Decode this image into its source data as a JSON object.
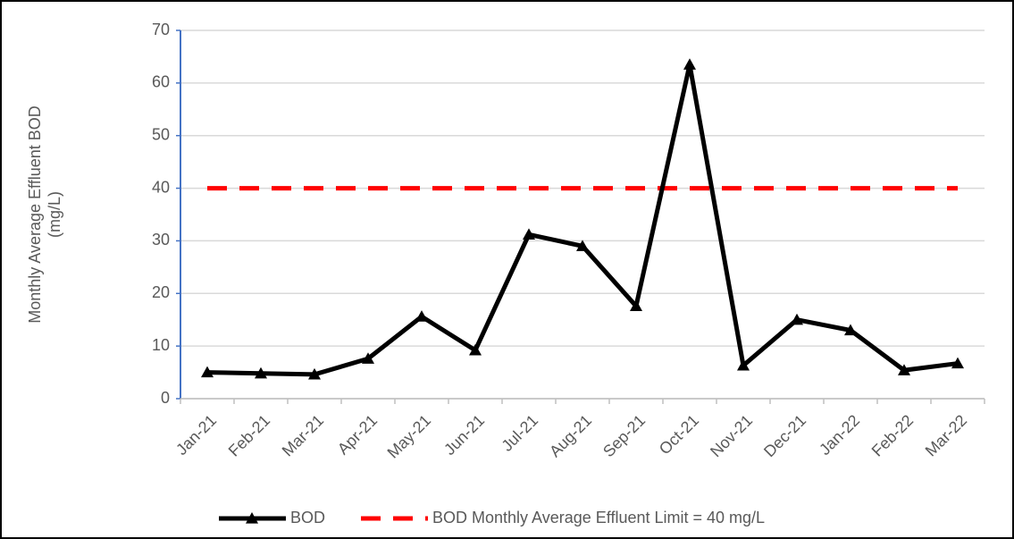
{
  "chart_data": {
    "type": "line",
    "y_label": [
      "Monthly Average Effluent BOD",
      "(mg/L)"
    ],
    "categories": [
      "Jan-21",
      "Feb-21",
      "Mar-21",
      "Apr-21",
      "May-21",
      "Jun-21",
      "Jul-21",
      "Aug-21",
      "Sep-21",
      "Oct-21",
      "Nov-21",
      "Dec-21",
      "Jan-22",
      "Feb-22",
      "Mar-22"
    ],
    "series": [
      {
        "name": "BOD",
        "color": "#000000",
        "style": "solid-triangle",
        "values": [
          5.0,
          4.8,
          4.6,
          7.6,
          15.6,
          9.2,
          31.2,
          29.0,
          17.6,
          63.5,
          6.3,
          15.0,
          13.0,
          5.4,
          6.7
        ]
      },
      {
        "name": "BOD Monthly Average Effluent Limit = 40 mg/L",
        "color": "#ff0000",
        "style": "dashed",
        "values": [
          40,
          40,
          40,
          40,
          40,
          40,
          40,
          40,
          40,
          40,
          40,
          40,
          40,
          40,
          40
        ]
      }
    ],
    "ylim": [
      0,
      70
    ],
    "yticks": [
      0,
      10,
      20,
      30,
      40,
      50,
      60,
      70
    ],
    "grid": true,
    "legend": "bottom"
  }
}
